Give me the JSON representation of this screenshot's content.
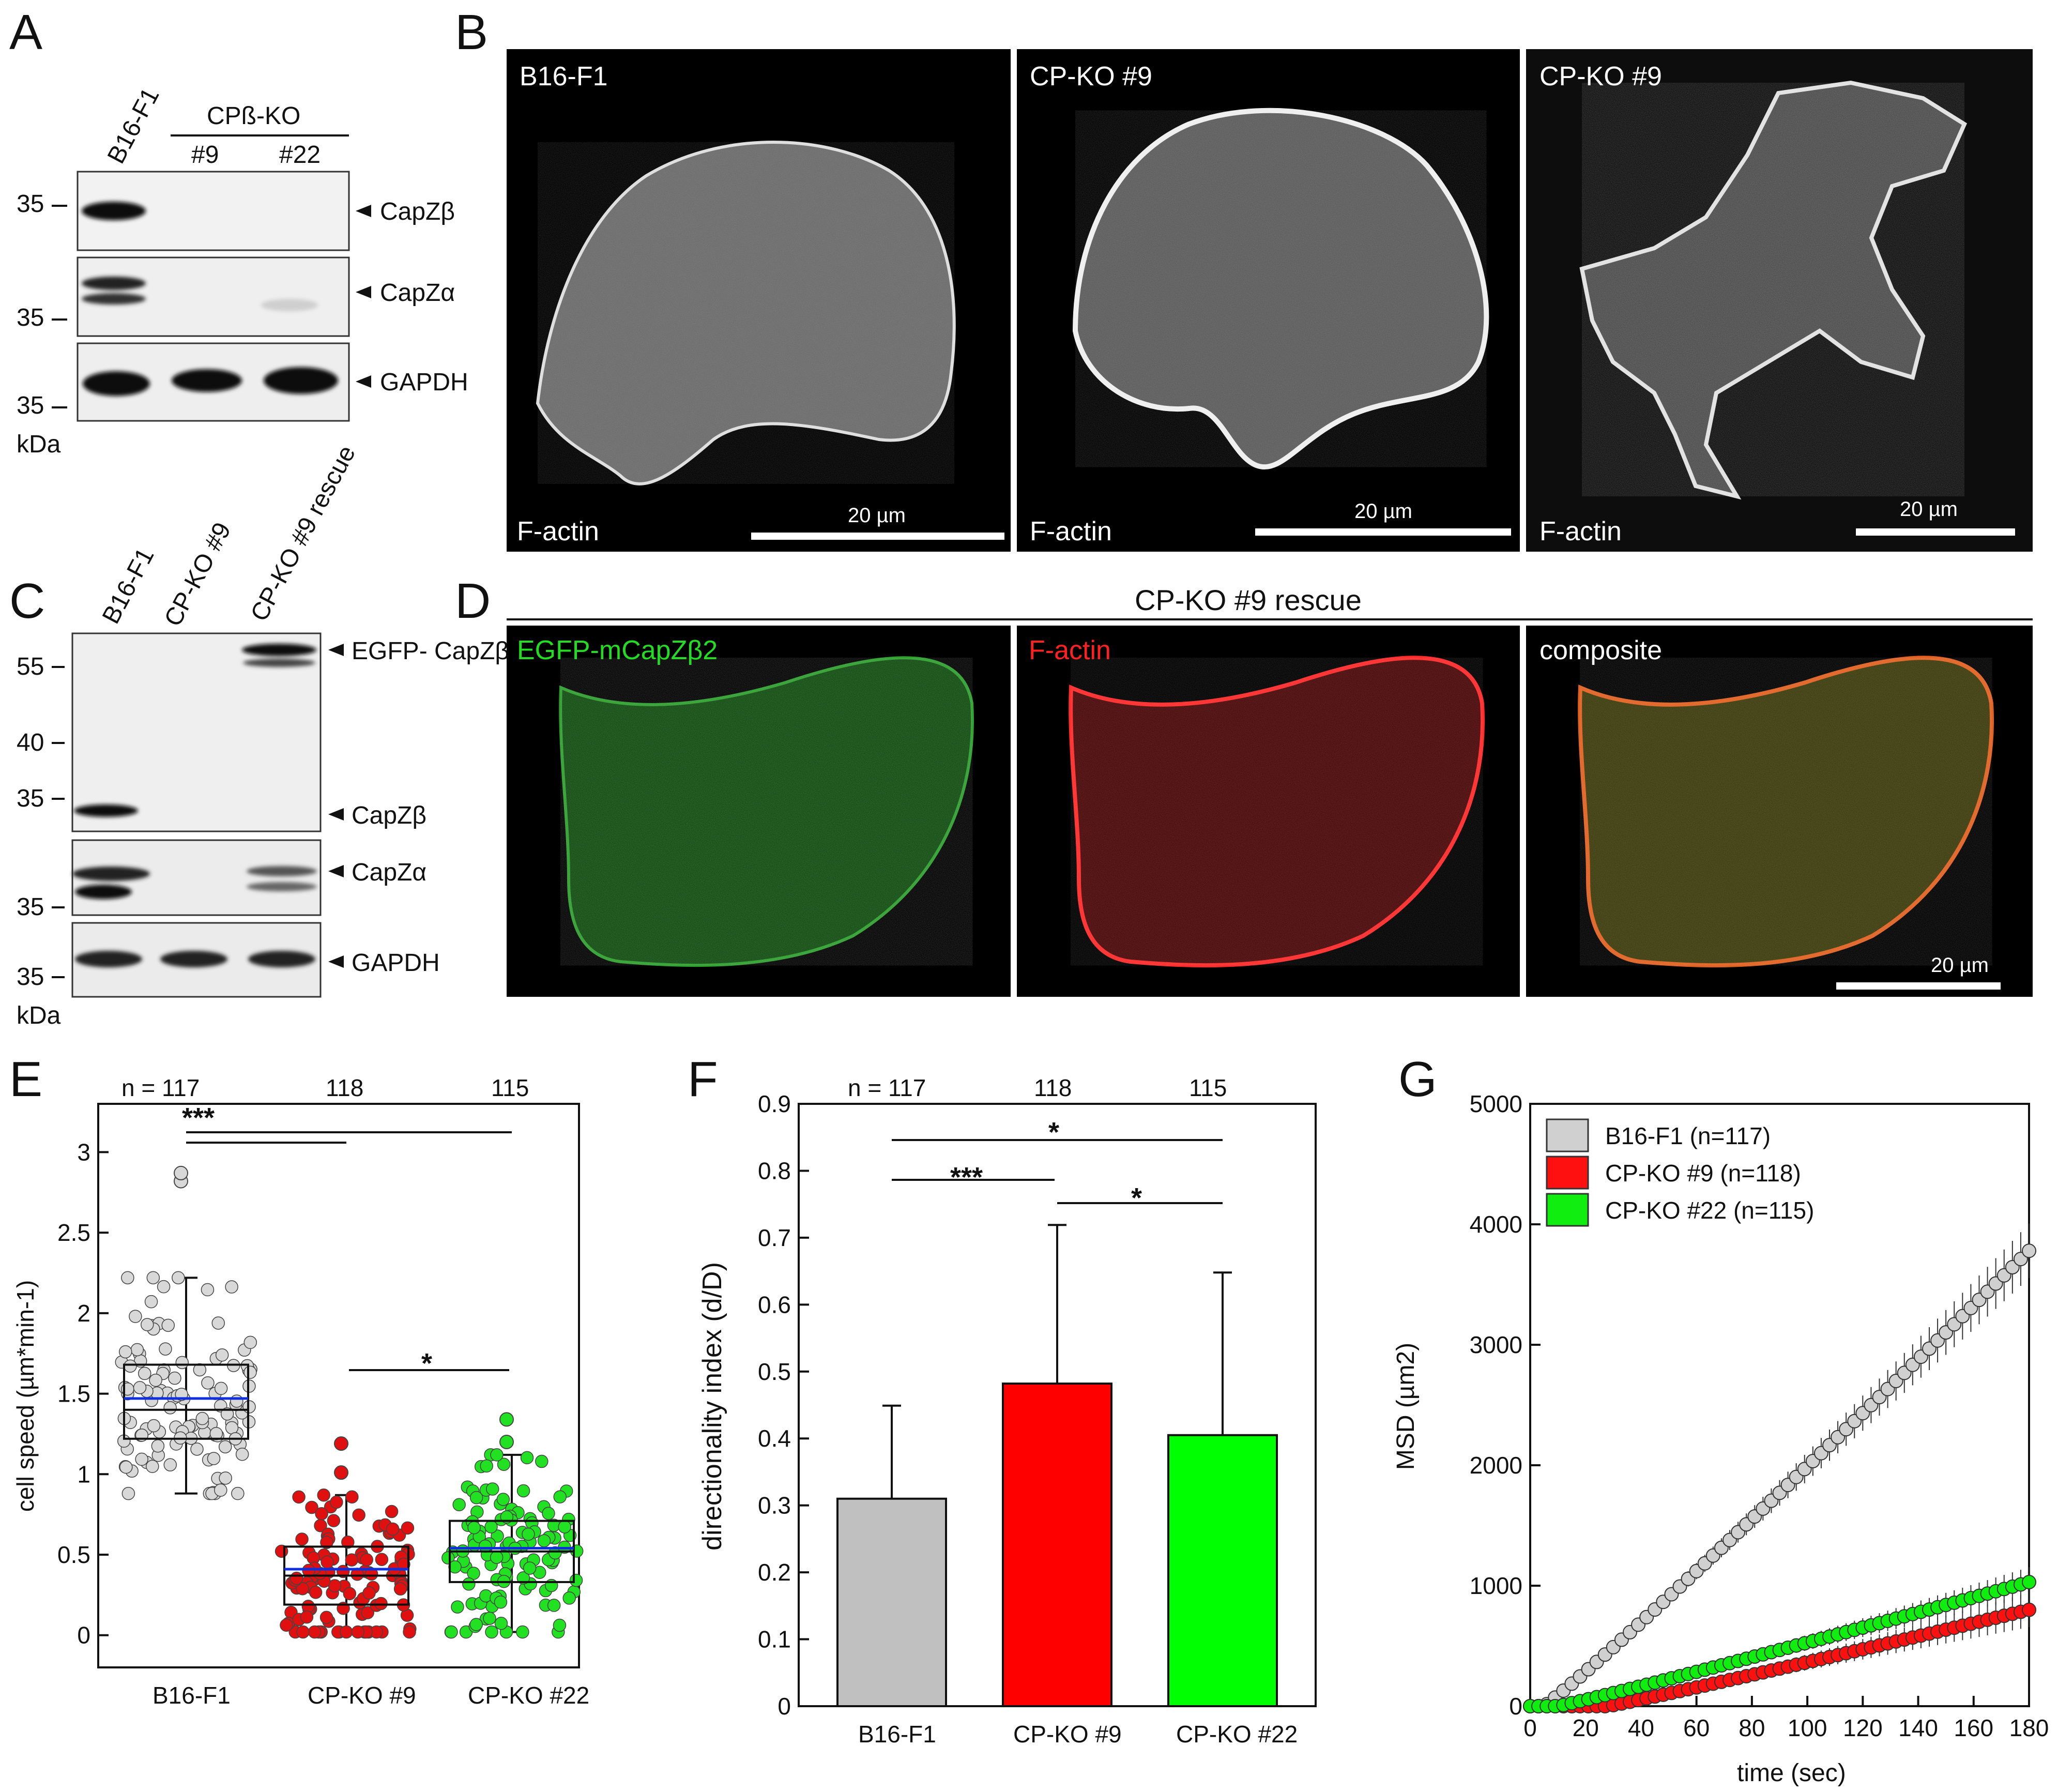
{
  "panel_letters": {
    "a": "A",
    "b": "B",
    "c": "C",
    "d": "D",
    "e": "E",
    "f": "F",
    "g": "G"
  },
  "panel_a": {
    "lanes": [
      "B16-F1",
      "#9",
      "#22"
    ],
    "group_label": "CPß-KO",
    "bands": [
      "CapZβ",
      "CapZα",
      "GAPDH"
    ],
    "markers": [
      "35",
      "35",
      "35"
    ],
    "unit": "kDa"
  },
  "panel_b": {
    "images": [
      {
        "title": "B16-F1",
        "stain": "F-actin",
        "scale": "20 µm"
      },
      {
        "title": "CP-KO #9",
        "stain": "F-actin",
        "scale": "20 µm"
      },
      {
        "title": "CP-KO #9",
        "stain": "F-actin",
        "scale": "20 µm"
      }
    ]
  },
  "panel_c": {
    "lanes": [
      "B16-F1",
      "CP-KO #9",
      "CP-KO #9 rescue"
    ],
    "bands": [
      "EGFP- CapZβ",
      "CapZβ",
      "CapZα",
      "GAPDH"
    ],
    "markers": [
      "55",
      "40",
      "35",
      "35",
      "35"
    ],
    "unit": "kDa"
  },
  "panel_d": {
    "title": "CP-KO #9 rescue",
    "channels": [
      "EGFP-mCapZβ2",
      "F-actin",
      "composite"
    ],
    "channel_colors": [
      "#22dd22",
      "#ff2020",
      "#ffffff"
    ],
    "scale": "20 µm"
  },
  "panel_e": {
    "ylabel": "cell speed (µm*min-1)",
    "yticks": [
      "0",
      "0.5",
      "1",
      "1.5",
      "2",
      "2.5",
      "3"
    ],
    "ylim": [
      -0.2,
      3.3
    ],
    "categories": [
      "B16-F1",
      "CP-KO #9",
      "CP-KO #22"
    ],
    "n": [
      "n = 117",
      "118",
      "115"
    ],
    "boxes": [
      {
        "q1": 1.22,
        "median": 1.4,
        "q3": 1.68,
        "mean": 1.47,
        "whisker_low": 0.88,
        "whisker_high": 2.22,
        "color": "#d8d8d8",
        "outliers": [
          2.82,
          2.87
        ]
      },
      {
        "q1": 0.19,
        "median": 0.37,
        "q3": 0.55,
        "mean": 0.41,
        "whisker_low": 0.02,
        "whisker_high": 0.87,
        "color": "#e01010",
        "outliers": [
          1.01,
          1.19
        ]
      },
      {
        "q1": 0.33,
        "median": 0.52,
        "q3": 0.71,
        "mean": 0.54,
        "whisker_low": 0.02,
        "whisker_high": 1.12,
        "color": "#22e022",
        "outliers": [
          1.2,
          1.34
        ]
      }
    ],
    "significance": [
      "***",
      "*"
    ]
  },
  "chart_data": [
    {
      "type": "bar",
      "panel": "F",
      "categories": [
        "B16-F1",
        "CP-KO #9",
        "CP-KO #22"
      ],
      "values": [
        0.31,
        0.482,
        0.405
      ],
      "errors": [
        0.139,
        0.237,
        0.243
      ],
      "colors": [
        "#c0c0c0",
        "#ff0000",
        "#00ff00"
      ],
      "n": [
        "n = 117",
        "118",
        "115"
      ],
      "ylabel": "directionality index (d/D)",
      "yticks": [
        "0",
        "0.1",
        "0.2",
        "0.3",
        "0.4",
        "0.5",
        "0.6",
        "0.7",
        "0.8",
        "0.9"
      ],
      "ylim": [
        0,
        0.9
      ],
      "significance": [
        "*",
        "***",
        "*"
      ]
    },
    {
      "type": "scatter",
      "panel": "G",
      "xlabel": "time (sec)",
      "ylabel": "MSD (µm2)",
      "xlim": [
        0,
        180
      ],
      "ylim": [
        0,
        5000
      ],
      "xticks": [
        "0",
        "20",
        "40",
        "60",
        "80",
        "100",
        "120",
        "140",
        "160",
        "180"
      ],
      "yticks": [
        "0",
        "1000",
        "2000",
        "3000",
        "4000",
        "5000"
      ],
      "legend_position": "top-left",
      "series": [
        {
          "name": "B16-F1 (n=117)",
          "color": "#d0d0d0",
          "x_end": 180,
          "y_end": 3780
        },
        {
          "name": "CP-KO #9 (n=118)",
          "color": "#ff1010",
          "x_end": 180,
          "y_end": 800
        },
        {
          "name": "CP-KO #22 (n=115)",
          "color": "#10ee10",
          "x_end": 180,
          "y_end": 1030
        }
      ]
    }
  ]
}
